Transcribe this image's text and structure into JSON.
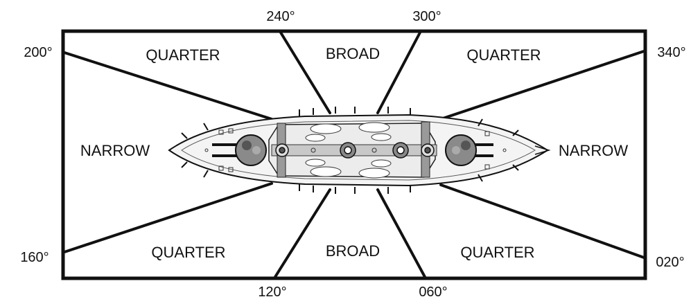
{
  "zones": {
    "quarter_top_left": "QUARTER",
    "broad_top": "BROAD",
    "quarter_top_right": "QUARTER",
    "narrow_left": "NARROW",
    "narrow_right": "NARROW",
    "quarter_bottom_left": "QUARTER",
    "broad_bottom": "BROAD",
    "quarter_bottom_right": "QUARTER"
  },
  "bearings": {
    "b200": "200°",
    "b240": "240°",
    "b300": "300°",
    "b340": "340°",
    "b160": "160°",
    "b120": "120°",
    "b060": "060°",
    "b020": "020°"
  },
  "colors": {
    "line": "#111111",
    "ship_fill": "#f4f4f4",
    "turret": "#8a8a8a",
    "deck": "#c8c8c8"
  }
}
